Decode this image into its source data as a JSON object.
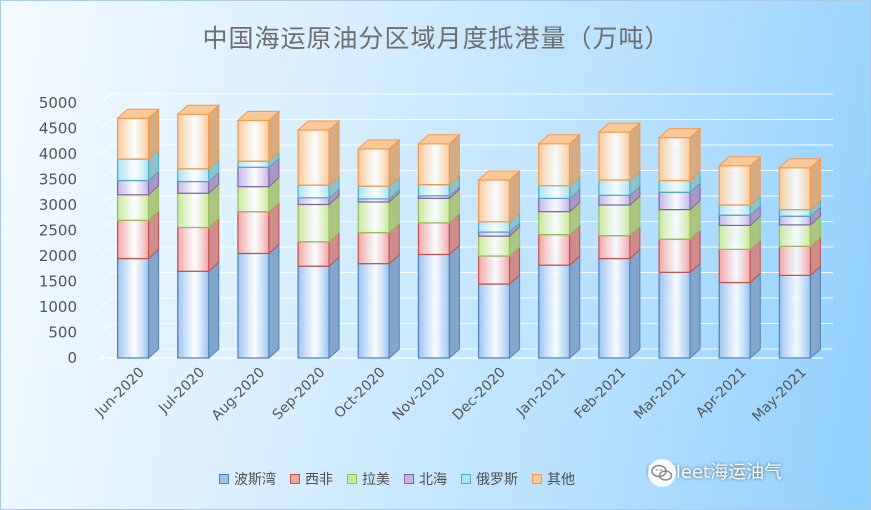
{
  "chart_data": {
    "type": "bar",
    "stacked": true,
    "title": "中国海运原油分区域月度抵港量（万吨）",
    "categories": [
      "Jun-2020",
      "Jul-2020",
      "Aug-2020",
      "Sep-2020",
      "Oct-2020",
      "Nov-2020",
      "Dec-2020",
      "Jan-2021",
      "Feb-2021",
      "Mar-2021",
      "Apr-2021",
      "May-2021"
    ],
    "ylim": [
      0,
      5000
    ],
    "yticks": [
      "0",
      "500",
      "1000",
      "1500",
      "2000",
      "2500",
      "3000",
      "3500",
      "4000",
      "4500",
      "5000"
    ],
    "grid": true,
    "legend_position": "bottom",
    "series": [
      {
        "name": "波斯湾",
        "color": "#9cc3ef",
        "edge": "#4f81bd",
        "values": [
          1950,
          1700,
          2050,
          1800,
          1850,
          2030,
          1450,
          1820,
          1950,
          1680,
          1480,
          1620
        ]
      },
      {
        "name": "西非",
        "color": "#f2a5a5",
        "edge": "#c0504d",
        "values": [
          750,
          860,
          820,
          480,
          610,
          620,
          550,
          600,
          450,
          650,
          650,
          570
        ]
      },
      {
        "name": "拉美",
        "color": "#c9e89a",
        "edge": "#9bbb59",
        "values": [
          500,
          670,
          490,
          730,
          600,
          480,
          390,
          450,
          600,
          580,
          470,
          420
        ]
      },
      {
        "name": "北海",
        "color": "#c6b4e6",
        "edge": "#8064a2",
        "values": [
          280,
          230,
          380,
          130,
          60,
          50,
          80,
          260,
          190,
          340,
          200,
          170
        ]
      },
      {
        "name": "俄罗斯",
        "color": "#a9e4ef",
        "edge": "#4bacc6",
        "values": [
          420,
          250,
          120,
          250,
          250,
          220,
          200,
          250,
          300,
          230,
          200,
          130
        ]
      },
      {
        "name": "其他",
        "color": "#f9c99a",
        "edge": "#f79646",
        "values": [
          800,
          1070,
          800,
          1080,
          730,
          800,
          820,
          820,
          940,
          840,
          770,
          820
        ]
      }
    ]
  },
  "watermark": {
    "text": "HiFleet海运油气",
    "icon": "wechat-icon"
  }
}
